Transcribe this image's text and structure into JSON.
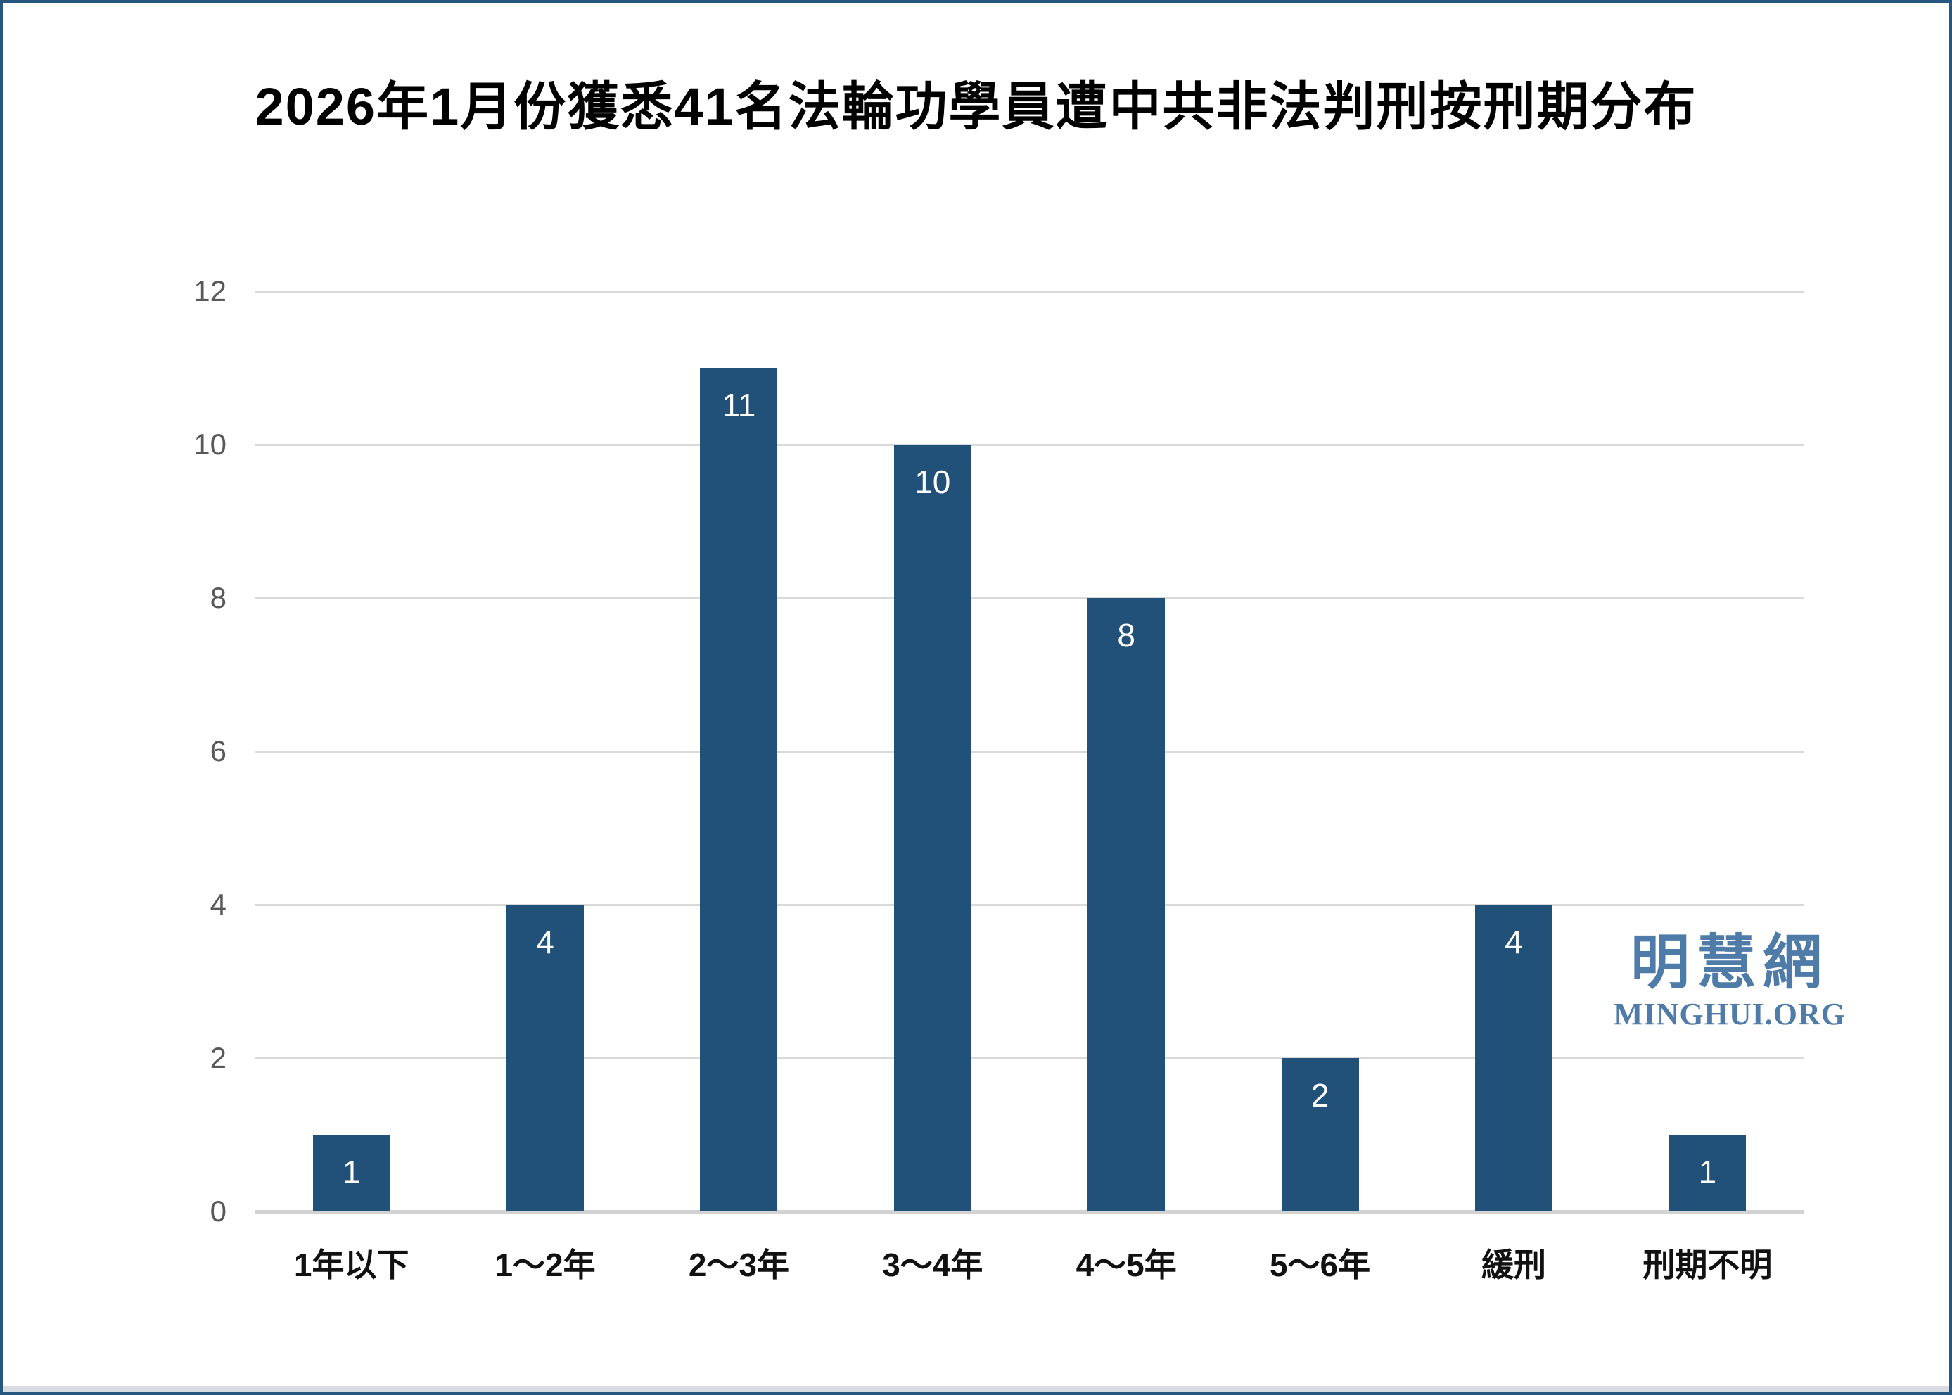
{
  "title": "2026年1月份獲悉41名法輪功學員遭中共非法判刑按刑期分布",
  "watermark": {
    "cjk": "明慧網",
    "latin": "MINGHUI.ORG"
  },
  "colors": {
    "bar": "#215179",
    "gridline": "#d9d9d9",
    "axis_line": "#d2d2d2",
    "y_tick_text": "#595959",
    "x_tick_text": "#111111",
    "title_text": "#000000",
    "data_label_text": "#ffffff",
    "watermark_text": "#4e7ba8",
    "page_border": "#27567f"
  },
  "chart_data": {
    "type": "bar",
    "title": "2026年1月份獲悉41名法輪功學員遭中共非法判刑按刑期分布",
    "categories": [
      "1年以下",
      "1～2年",
      "2～3年",
      "3～4年",
      "4～5年",
      "5～6年",
      "緩刑",
      "刑期不明"
    ],
    "values": [
      1,
      4,
      11,
      10,
      8,
      2,
      4,
      1
    ],
    "xlabel": "",
    "ylabel": "",
    "ylim": [
      0,
      12
    ],
    "yticks": [
      0,
      2,
      4,
      6,
      8,
      10,
      12
    ],
    "grid": "horizontal",
    "legend": "none",
    "data_labels_position": "inside-end"
  }
}
